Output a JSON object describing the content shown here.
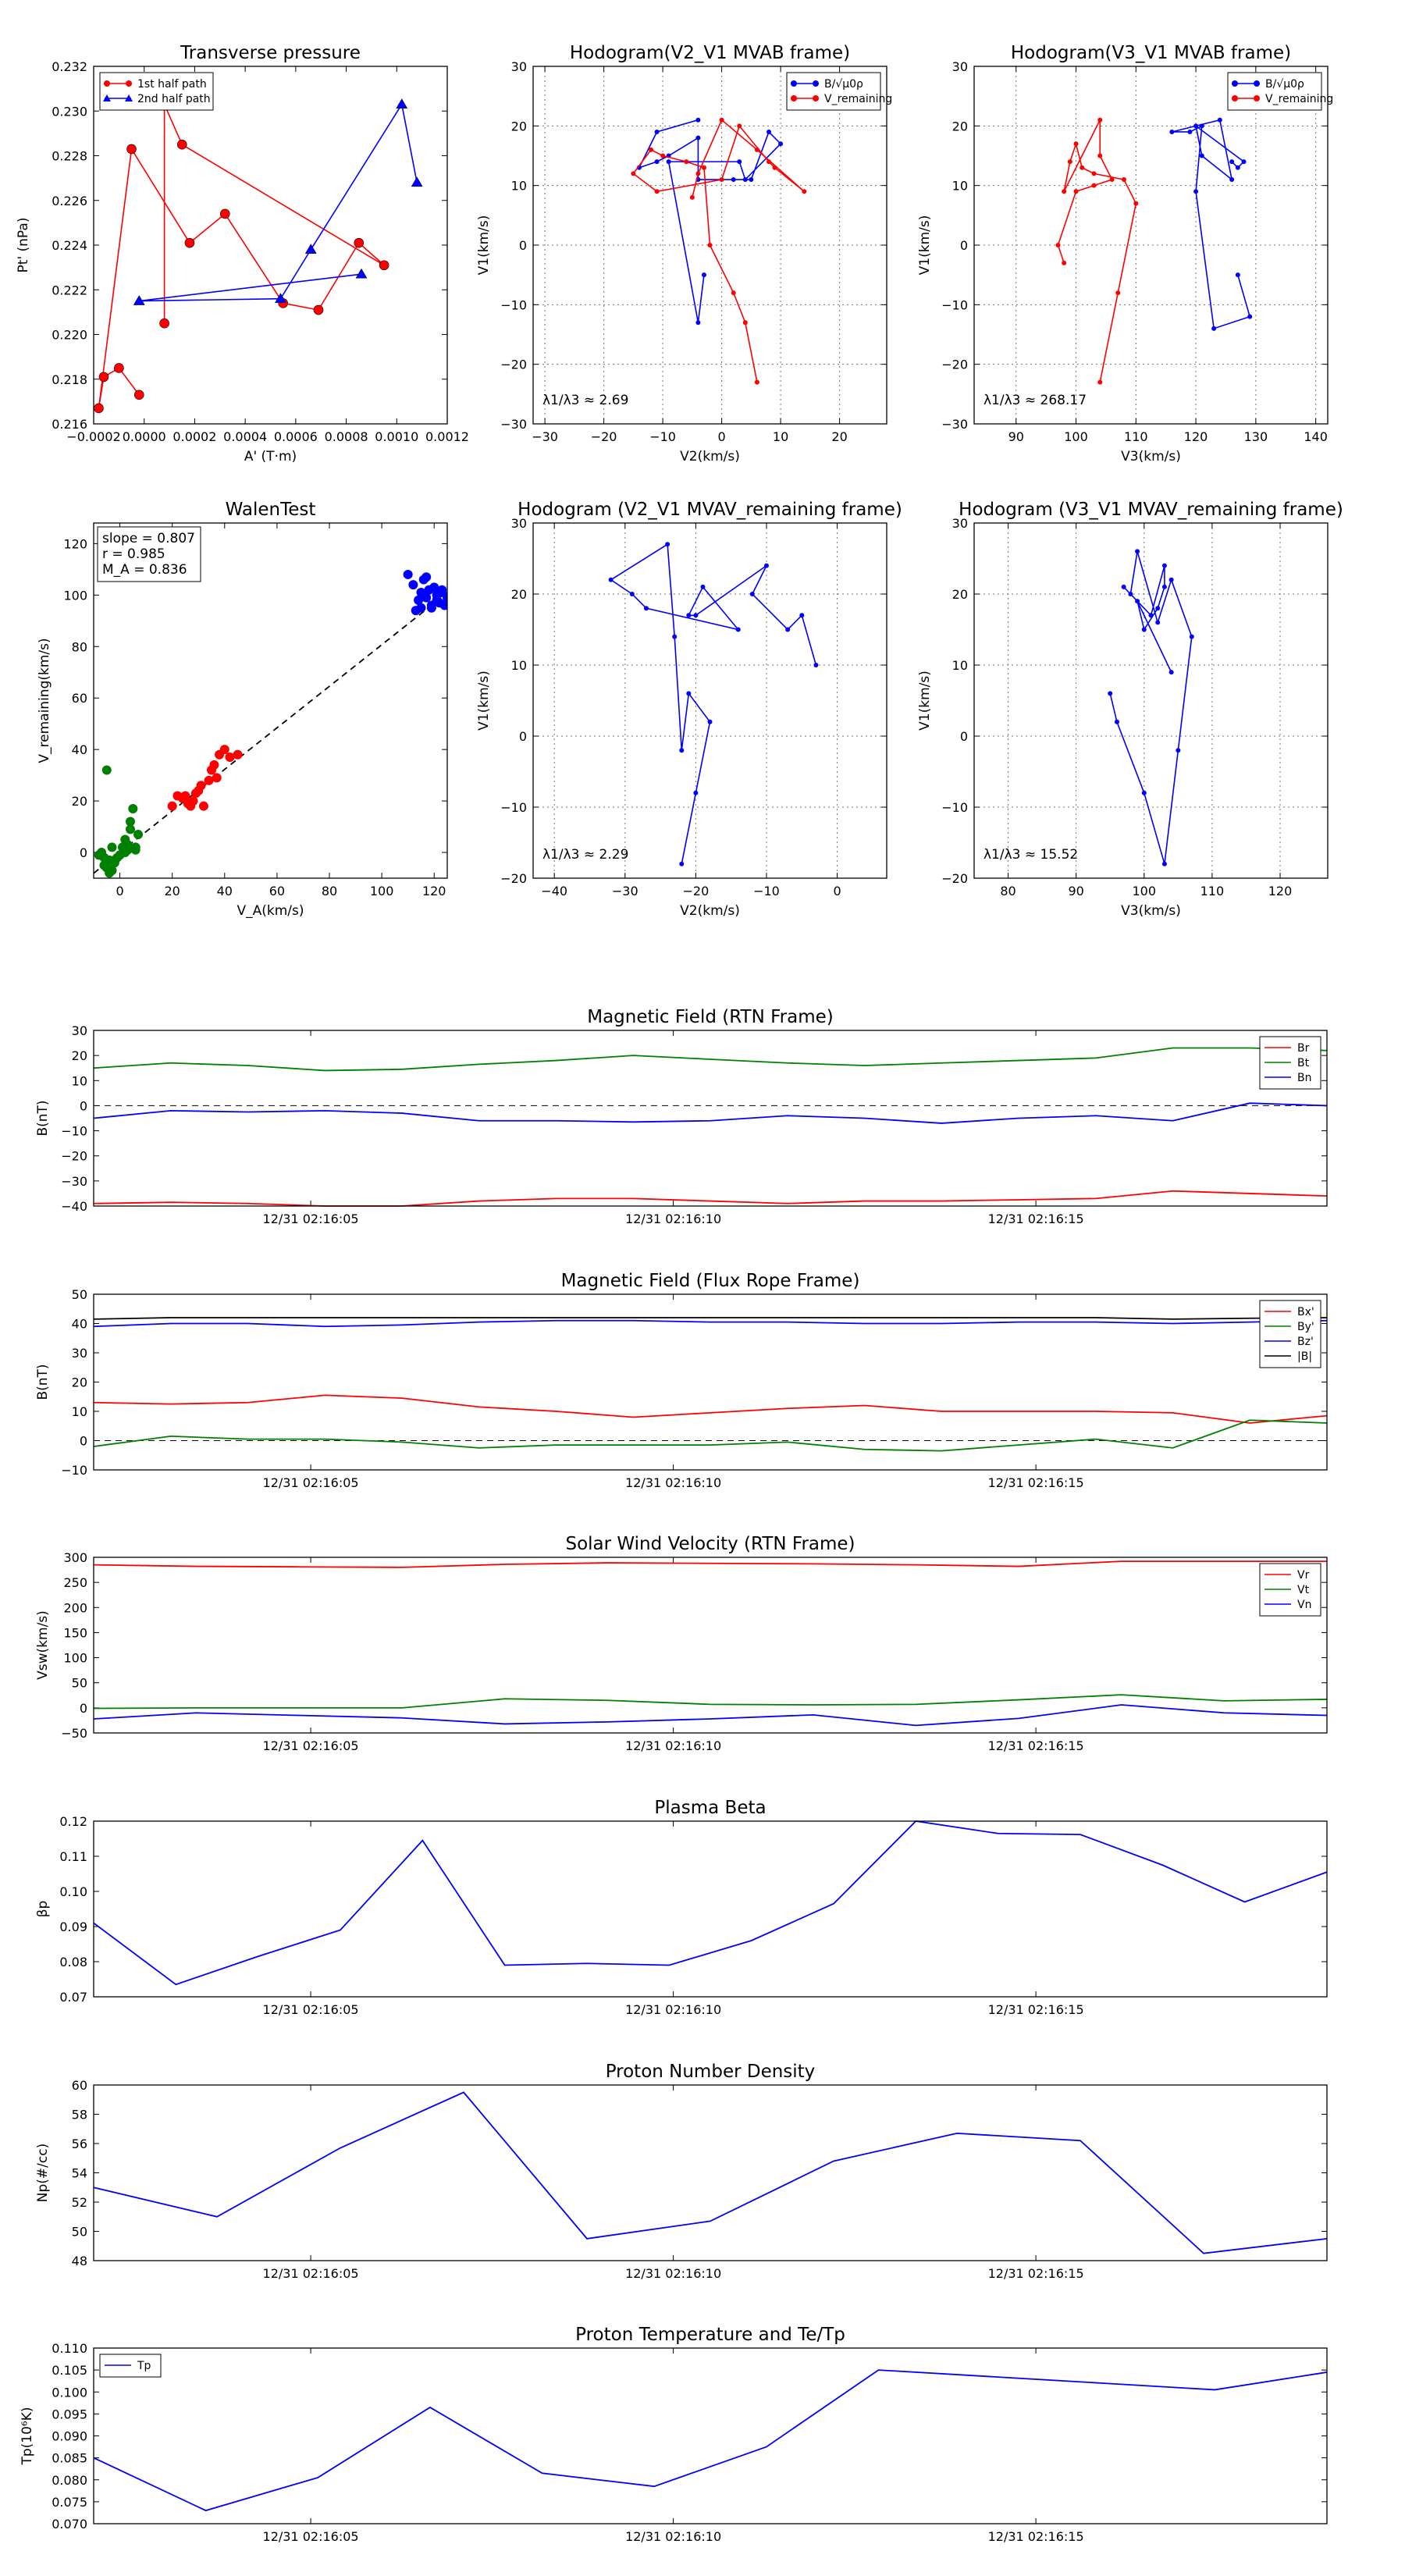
{
  "chart_data": [
    {
      "id": "p1",
      "type": "line",
      "title": "Transverse pressure",
      "xlabel": "A' (T·m)",
      "ylabel": "Pt' (nPa)",
      "xlim": [
        -0.0002,
        0.0012
      ],
      "ylim": [
        0.216,
        0.232
      ],
      "xticks": [
        -0.0002,
        0,
        0.0002,
        0.0004,
        0.0006,
        0.0008,
        0.001,
        0.0012
      ],
      "xticklabels": [
        "−0.0002",
        "0.0000",
        "0.0002",
        "0.0004",
        "0.0006",
        "0.0008",
        "0.0010",
        "0.0012"
      ],
      "yticks": [
        0.216,
        0.218,
        0.22,
        0.222,
        0.224,
        0.226,
        0.228,
        0.23,
        0.232
      ],
      "yticklabels": [
        "0.216",
        "0.218",
        "0.220",
        "0.222",
        "0.224",
        "0.226",
        "0.228",
        "0.230",
        "0.232"
      ],
      "grid": false,
      "legend": "top-left",
      "series": [
        {
          "name": "1st half path",
          "color": "#ff0000",
          "marker": "circle",
          "x": [
            -2e-05,
            -0.0001,
            -0.00016,
            -0.00018,
            -5e-05,
            0.00018,
            0.00032,
            0.00055,
            0.00069,
            0.00085,
            0.00095,
            0.00015,
            8e-05,
            8e-05
          ],
          "y": [
            0.2173,
            0.2185,
            0.2181,
            0.2167,
            0.2283,
            0.2241,
            0.2254,
            0.2214,
            0.2211,
            0.2241,
            0.2231,
            0.2285,
            0.2303,
            0.2205
          ]
        },
        {
          "name": "2nd half path",
          "color": "#0000ff",
          "marker": "triangle",
          "x": [
            0.00108,
            0.00102,
            0.00066,
            0.00054,
            -2e-05,
            0.00086
          ],
          "y": [
            0.2268,
            0.2303,
            0.2238,
            0.2216,
            0.2215,
            0.2227
          ]
        }
      ]
    },
    {
      "id": "p2",
      "type": "line",
      "title": "Hodogram(V2_V1 MVAB frame)",
      "xlabel": "V2(km/s)",
      "ylabel": "V1(km/s)",
      "xlim": [
        -32,
        28
      ],
      "ylim": [
        -30,
        30
      ],
      "xticks": [
        -30,
        -20,
        -10,
        0,
        10,
        20
      ],
      "yticks": [
        -30,
        -20,
        -10,
        0,
        10,
        20,
        30
      ],
      "grid": true,
      "legend": "top-right",
      "annotation": "λ1/λ3 ≈ 2.69",
      "series": [
        {
          "name": "B/√μ0ρ",
          "color": "#0000ff",
          "marker": "circle",
          "x": [
            -4,
            -11,
            -14,
            -11,
            -9,
            -4,
            -4,
            2,
            5,
            8,
            10,
            4,
            3,
            -9,
            -4,
            -3
          ],
          "y": [
            21,
            19,
            13,
            14,
            15,
            18,
            11,
            11,
            11,
            19,
            17,
            11,
            14,
            14,
            -13,
            -5
          ]
        },
        {
          "name": "V_remaining",
          "color": "#ff0000",
          "marker": "circle",
          "x": [
            6,
            4,
            2,
            -2,
            -3,
            -6,
            -10,
            -12,
            -15,
            -11,
            0,
            3,
            8,
            9,
            14,
            6,
            0,
            -4,
            -5
          ],
          "y": [
            -23,
            -13,
            -8,
            0,
            13,
            14,
            15,
            16,
            12,
            9,
            11,
            20,
            14,
            13,
            9,
            16,
            21,
            12,
            8
          ]
        }
      ]
    },
    {
      "id": "p3",
      "type": "line",
      "title": "Hodogram(V3_V1 MVAB frame)",
      "xlabel": "V3(km/s)",
      "ylabel": "V1(km/s)",
      "xlim": [
        83,
        142
      ],
      "ylim": [
        -30,
        30
      ],
      "xticks": [
        90,
        100,
        110,
        120,
        130,
        140
      ],
      "yticks": [
        -30,
        -20,
        -10,
        0,
        10,
        20,
        30
      ],
      "grid": true,
      "legend": "top-right",
      "annotation": "λ1/λ3 ≈ 268.17",
      "series": [
        {
          "name": "B/√μ0ρ",
          "color": "#0000ff",
          "marker": "circle",
          "x": [
            127,
            129,
            123,
            120,
            121,
            119,
            116,
            124,
            126,
            121,
            120,
            128,
            127,
            126
          ],
          "y": [
            -5,
            -12,
            -14,
            9,
            20,
            19,
            19,
            21,
            11,
            15,
            20,
            14,
            13,
            14
          ]
        },
        {
          "name": "V_remaining",
          "color": "#ff0000",
          "marker": "circle",
          "x": [
            104,
            107,
            110,
            108,
            103,
            101,
            100,
            99,
            98,
            104,
            104,
            106,
            103,
            100,
            97,
            98
          ],
          "y": [
            -23,
            -8,
            7,
            11,
            12,
            13,
            17,
            14,
            9,
            21,
            15,
            11,
            10,
            9,
            0,
            -3
          ]
        }
      ]
    },
    {
      "id": "p4",
      "type": "scatter",
      "title": "WalenTest",
      "xlabel": "V_A(km/s)",
      "ylabel": "V_remaining(km/s)",
      "xlim": [
        -10,
        125
      ],
      "ylim": [
        -10,
        128
      ],
      "xticks": [
        0,
        20,
        40,
        60,
        80,
        100,
        120
      ],
      "yticks": [
        0,
        20,
        40,
        60,
        80,
        100,
        120
      ],
      "grid": false,
      "legend": "top-left",
      "legend_lines": [
        "slope = 0.807",
        "r = 0.985",
        "M_A = 0.836"
      ],
      "fit_line": {
        "slope": 0.807,
        "intercept": 0
      },
      "series": [
        {
          "name": "green",
          "color": "#008000",
          "x": [
            -6,
            -5,
            -4,
            -3,
            -2,
            -1,
            -3,
            -6,
            -7,
            1,
            2,
            3,
            4,
            5,
            4,
            2,
            6,
            0,
            -5,
            -2,
            3,
            6,
            7,
            -8,
            -4
          ],
          "y": [
            -5,
            -6,
            -3,
            -7,
            -4,
            -2,
            2,
            -2,
            0,
            2,
            0,
            1,
            12,
            17,
            9,
            5,
            2,
            -1,
            32,
            -3,
            3,
            1,
            7,
            -1,
            -8
          ]
        },
        {
          "name": "red",
          "color": "#ff0000",
          "x": [
            20,
            22,
            24,
            26,
            25,
            28,
            30,
            32,
            34,
            36,
            38,
            40,
            42,
            45,
            27,
            29,
            31,
            35,
            37
          ],
          "y": [
            18,
            22,
            21,
            19,
            22,
            20,
            24,
            18,
            28,
            34,
            38,
            40,
            37,
            38,
            18,
            23,
            26,
            32,
            29
          ]
        },
        {
          "name": "blue",
          "color": "#0000ff",
          "x": [
            110,
            112,
            114,
            115,
            116,
            117,
            118,
            119,
            120,
            121,
            122,
            123,
            124,
            125,
            113,
            115,
            117,
            119,
            121,
            123
          ],
          "y": [
            108,
            104,
            98,
            101,
            106,
            99,
            102,
            96,
            103,
            100,
            97,
            101,
            96,
            99,
            94,
            95,
            107,
            95,
            98,
            102
          ]
        }
      ]
    },
    {
      "id": "p5",
      "type": "line",
      "title": "Hodogram (V2_V1 MVAV_remaining frame)",
      "xlabel": "V2(km/s)",
      "ylabel": "V1(km/s)",
      "xlim": [
        -43,
        7
      ],
      "ylim": [
        -20,
        30
      ],
      "xticks": [
        -40,
        -30,
        -20,
        -10,
        0
      ],
      "yticks": [
        -20,
        -10,
        0,
        10,
        20,
        30
      ],
      "grid": true,
      "annotation": "λ1/λ3 ≈ 2.29",
      "series": [
        {
          "name": "",
          "color": "#0000ff",
          "marker": "circle",
          "x": [
            -22,
            -20,
            -18,
            -21,
            -22,
            -23,
            -24,
            -32,
            -29,
            -27,
            -14,
            -19,
            -21,
            -20,
            -10,
            -12,
            -7,
            -5,
            -3
          ],
          "y": [
            -18,
            -8,
            2,
            6,
            -2,
            14,
            27,
            22,
            20,
            18,
            15,
            21,
            17,
            17,
            24,
            20,
            15,
            17,
            10
          ]
        }
      ]
    },
    {
      "id": "p6",
      "type": "line",
      "title": "Hodogram (V3_V1 MVAV_remaining frame)",
      "xlabel": "V3(km/s)",
      "ylabel": "V1(km/s)",
      "xlim": [
        75,
        127
      ],
      "ylim": [
        -20,
        30
      ],
      "xticks": [
        80,
        90,
        100,
        110,
        120
      ],
      "yticks": [
        -20,
        -10,
        0,
        10,
        20,
        30
      ],
      "grid": true,
      "annotation": "λ1/λ3 ≈ 15.52",
      "series": [
        {
          "name": "",
          "color": "#0000ff",
          "marker": "circle",
          "x": [
            95,
            96,
            100,
            103,
            105,
            107,
            104,
            102,
            99,
            98,
            97,
            101,
            103,
            103,
            102,
            100,
            99,
            104
          ],
          "y": [
            6,
            2,
            -8,
            -18,
            -2,
            14,
            22,
            16,
            26,
            20,
            21,
            17,
            24,
            21,
            18,
            15,
            19,
            9
          ]
        }
      ]
    },
    {
      "id": "t1",
      "type": "line",
      "title": "Magnetic Field (RTN Frame)",
      "ylabel": "B(nT)",
      "ylim": [
        -40,
        30
      ],
      "yticks": [
        -40,
        -30,
        -20,
        -10,
        0,
        10,
        20,
        30
      ],
      "xticklabels": [
        "12/31 02:16:05",
        "12/31 02:16:10",
        "12/31 02:16:15"
      ],
      "zero_line": true,
      "legend": "top-right",
      "series": [
        {
          "name": "Br",
          "color": "#ff0000",
          "values": [
            -39,
            -38.5,
            -39,
            -40,
            -40,
            -38,
            -37,
            -37,
            -38,
            -39,
            -38,
            -38,
            -37.5,
            -37,
            -34,
            -35,
            -36
          ]
        },
        {
          "name": "Bt",
          "color": "#008000",
          "values": [
            15,
            17,
            16,
            14,
            14.5,
            16.5,
            18,
            20,
            18.5,
            17,
            16,
            17,
            18,
            19,
            23,
            23,
            22
          ]
        },
        {
          "name": "Bn",
          "color": "#0000ff",
          "values": [
            -5,
            -2,
            -2.5,
            -2,
            -3,
            -6,
            -6,
            -6.5,
            -6,
            -4,
            -5,
            -7,
            -5,
            -4,
            -6,
            1,
            0
          ]
        }
      ]
    },
    {
      "id": "t2",
      "type": "line",
      "title": "Magnetic Field (Flux Rope Frame)",
      "ylabel": "B(nT)",
      "ylim": [
        -10,
        50
      ],
      "yticks": [
        -10,
        0,
        10,
        20,
        30,
        40,
        50
      ],
      "xticklabels": [
        "12/31 02:16:05",
        "12/31 02:16:10",
        "12/31 02:16:15"
      ],
      "zero_line": true,
      "legend": "top-right",
      "series": [
        {
          "name": "Bx'",
          "color": "#ff0000",
          "values": [
            13,
            12.5,
            13,
            15.5,
            14.5,
            11.5,
            10,
            8,
            9.5,
            11,
            12,
            10,
            10,
            10,
            9.5,
            6,
            8.5
          ]
        },
        {
          "name": "By'",
          "color": "#008000",
          "values": [
            -2,
            1.5,
            0.5,
            0.5,
            -0.5,
            -2.5,
            -1.5,
            -1.5,
            -1.5,
            -0.5,
            -3,
            -3.5,
            -1.5,
            0.5,
            -2.5,
            7,
            6
          ]
        },
        {
          "name": "Bz'",
          "color": "#0000ff",
          "values": [
            39,
            40,
            40,
            39,
            39.5,
            40.5,
            41,
            41,
            40.5,
            40.5,
            40,
            40,
            40.5,
            40.5,
            40,
            40.5,
            41
          ]
        },
        {
          "name": "|B|",
          "color": "#000000",
          "values": [
            41.5,
            42,
            42,
            42,
            42,
            42,
            42,
            42,
            42,
            42,
            42,
            42,
            42,
            42,
            41.5,
            41.8,
            42
          ]
        }
      ]
    },
    {
      "id": "t3",
      "type": "line",
      "title": "Solar Wind Velocity (RTN Frame)",
      "ylabel": "Vsw(km/s)",
      "ylim": [
        -50,
        300
      ],
      "yticks": [
        -50,
        0,
        50,
        100,
        150,
        200,
        250,
        300
      ],
      "xticklabels": [
        "12/31 02:16:05",
        "12/31 02:16:10",
        "12/31 02:16:15"
      ],
      "legend": "top-right",
      "series": [
        {
          "name": "Vr",
          "color": "#ff0000",
          "values": [
            285,
            282,
            281,
            280,
            286,
            289,
            288,
            287,
            285,
            282,
            292,
            292,
            292
          ]
        },
        {
          "name": "Vt",
          "color": "#008000",
          "values": [
            -1,
            0,
            0,
            0,
            18,
            15,
            7,
            6,
            7,
            16,
            26,
            14,
            17
          ]
        },
        {
          "name": "Vn",
          "color": "#0000ff",
          "values": [
            -22,
            -10,
            -15,
            -20,
            -32,
            -28,
            -22,
            -14,
            -35,
            -21,
            6,
            -10,
            -15
          ]
        }
      ]
    },
    {
      "id": "t4",
      "type": "line",
      "title": "Plasma Beta",
      "ylabel": "βp",
      "ylim": [
        0.07,
        0.12
      ],
      "yticks": [
        0.07,
        0.08,
        0.09,
        0.1,
        0.11,
        0.12
      ],
      "yticklabels": [
        "0.07",
        "0.08",
        "0.09",
        "0.10",
        "0.11",
        "0.12"
      ],
      "xticklabels": [
        "12/31 02:16:05",
        "12/31 02:16:10",
        "12/31 02:16:15"
      ],
      "series": [
        {
          "name": "",
          "color": "#0000ff",
          "values": [
            0.091,
            0.0735,
            0.0815,
            0.089,
            0.1145,
            0.079,
            0.0795,
            0.079,
            0.086,
            0.0965,
            0.12,
            0.1165,
            0.1162,
            0.1075,
            0.097,
            0.1055
          ]
        }
      ]
    },
    {
      "id": "t5",
      "type": "line",
      "title": "Proton Number Density",
      "ylabel": "Np(#/cc)",
      "ylim": [
        48,
        60
      ],
      "yticks": [
        48,
        50,
        52,
        54,
        56,
        58,
        60
      ],
      "xticklabels": [
        "12/31 02:16:05",
        "12/31 02:16:10",
        "12/31 02:16:15"
      ],
      "series": [
        {
          "name": "",
          "color": "#0000ff",
          "values": [
            53,
            51,
            55.7,
            59.5,
            49.5,
            50.7,
            54.8,
            56.7,
            56.2,
            48.5,
            49.5
          ]
        }
      ]
    },
    {
      "id": "t6",
      "type": "line",
      "title": "Proton Temperature and Te/Tp",
      "ylabel": "Tp(10⁶K)",
      "ylim": [
        0.07,
        0.11
      ],
      "yticks": [
        0.07,
        0.075,
        0.08,
        0.085,
        0.09,
        0.095,
        0.1,
        0.105,
        0.11
      ],
      "yticklabels": [
        "0.070",
        "0.075",
        "0.080",
        "0.085",
        "0.090",
        "0.095",
        "0.100",
        "0.105",
        "0.110"
      ],
      "xticklabels": [
        "12/31 02:16:05",
        "12/31 02:16:10",
        "12/31 02:16:15"
      ],
      "legend": "top-left",
      "series": [
        {
          "name": "Tp",
          "color": "#0000ff",
          "values": [
            0.085,
            0.073,
            0.0805,
            0.0965,
            0.0815,
            0.0785,
            0.0875,
            0.105,
            0.1035,
            0.102,
            0.1005,
            0.1045
          ]
        }
      ]
    }
  ]
}
